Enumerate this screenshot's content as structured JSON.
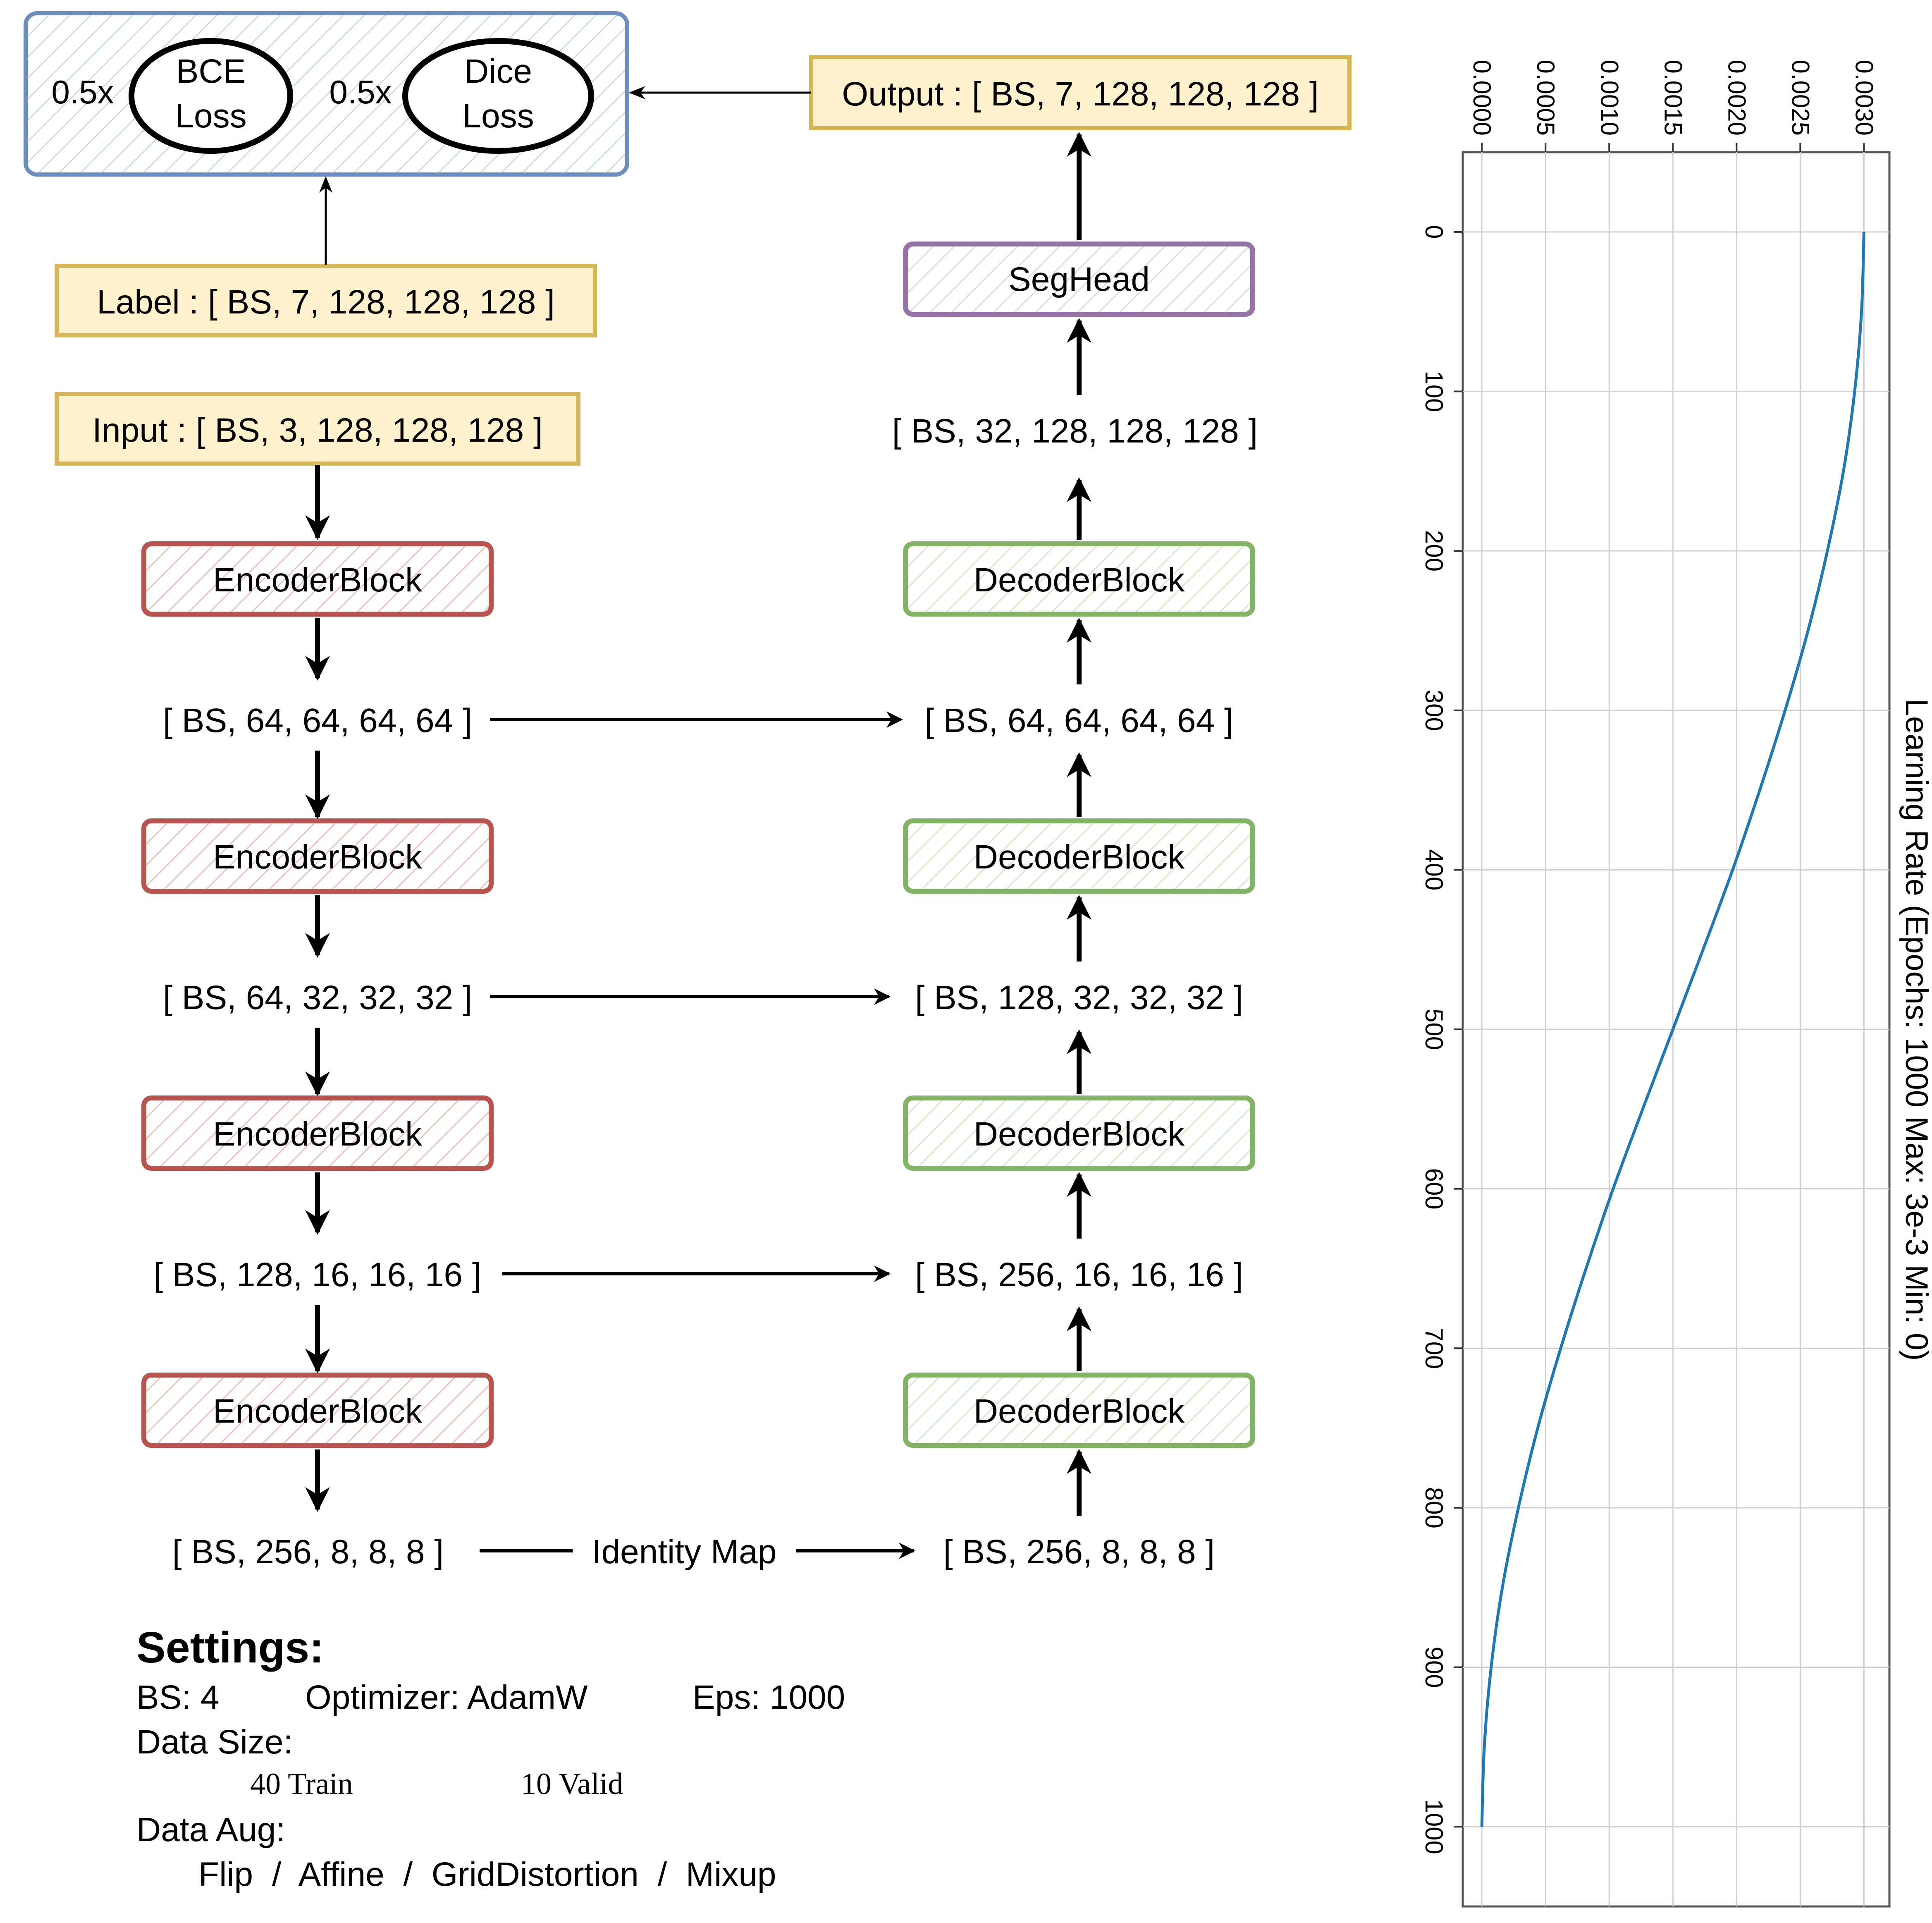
{
  "loss": {
    "bce_weight": "0.5x",
    "bce_line1": "BCE",
    "bce_line2": "Loss",
    "dice_weight": "0.5x",
    "dice_line1": "Dice",
    "dice_line2": "Loss"
  },
  "output_label": "Output : [ BS, 7, 128, 128, 128 ]",
  "label_label": "Label : [ BS, 7, 128, 128, 128 ]",
  "input_label": "Input : [ BS, 3, 128, 128, 128 ]",
  "seghead_label": "SegHead",
  "seghead_input_shape": "[ BS, 32, 128, 128, 128 ]",
  "encoder": {
    "block_label": "EncoderBlock",
    "shapes": [
      "[ BS, 64, 64, 64, 64 ]",
      "[ BS, 64, 32, 32, 32 ]",
      "[ BS, 128, 16, 16, 16 ]",
      "[ BS, 256, 8, 8, 8 ]"
    ]
  },
  "decoder": {
    "block_label": "DecoderBlock",
    "shapes": [
      "[ BS, 64, 64, 64, 64 ]",
      "[ BS, 128, 32, 32, 32 ]",
      "[ BS, 256, 16, 16, 16 ]",
      "[ BS, 256, 8, 8, 8 ]"
    ]
  },
  "identity_map": "Identity Map",
  "settings": {
    "title": "Settings:",
    "bs": "BS:  4",
    "optimizer": "Optimizer:  AdamW",
    "eps": "Eps:  1000",
    "data_size_label": "Data Size:",
    "train": "40 Train",
    "valid": "10 Valid",
    "data_aug_label": "Data Aug:",
    "augs": "Flip  /  Affine  /  GridDistortion  /  Mixup"
  },
  "colors": {
    "loss_border": "#6c8ebf",
    "shape_box_fill": "#fff2cc",
    "shape_box_border": "#d6b656",
    "encoder": "#b85450",
    "decoder": "#82b366",
    "seghead": "#9673a6",
    "curve": "#1f77b4"
  },
  "chart_data": {
    "type": "line",
    "title": "",
    "ylabel": "Learning Rate (Epochs: 1000   Max: 3e-3   Min: 0)",
    "xlabel": "",
    "x_ticks": [
      "0",
      "100",
      "200",
      "300",
      "400",
      "500",
      "600",
      "700",
      "800",
      "900",
      "1000"
    ],
    "y_ticks": [
      "0.0000",
      "0.0005",
      "0.0010",
      "0.0015",
      "0.0020",
      "0.0025",
      "0.0030"
    ],
    "xlim": [
      -50,
      1050
    ],
    "ylim": [
      -0.00015,
      0.0032
    ],
    "grid": true,
    "orientation": "rotated 90 degrees clockwise",
    "series": [
      {
        "x": [
          0,
          50,
          100,
          150,
          200,
          250,
          300,
          350,
          400,
          450,
          500,
          550,
          600,
          650,
          700,
          750,
          800,
          850,
          900,
          950,
          1000
        ],
        "y": [
          0.003,
          0.002981,
          0.002927,
          0.002839,
          0.002713,
          0.002561,
          0.002381,
          0.002182,
          0.001969,
          0.001737,
          0.0015,
          0.001263,
          0.001031,
          0.000818,
          0.000619,
          0.000439,
          0.000287,
          0.000161,
          7.3e-05,
          1.9e-05,
          0.0
        ]
      }
    ]
  }
}
